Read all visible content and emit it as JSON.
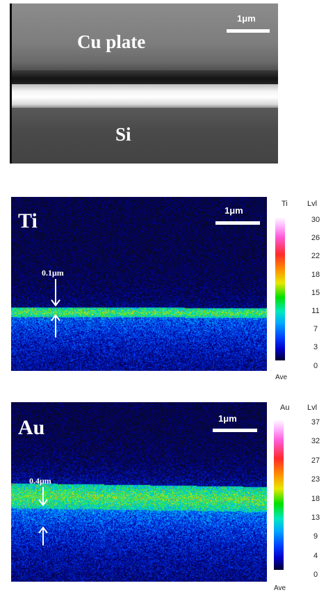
{
  "sem": {
    "top_label": "Cu plate",
    "bottom_label": "Si",
    "scale_label": "1μm"
  },
  "ti_map": {
    "element": "Ti",
    "scale_label": "1μm",
    "thickness_label": "0.1μm",
    "colorbar": {
      "title": "Ti",
      "level_title": "Lvl",
      "levels": [
        "30",
        "26",
        "22",
        "18",
        "15",
        "11",
        "7",
        "3",
        "0"
      ],
      "footer": "Ave"
    }
  },
  "au_map": {
    "element": "Au",
    "scale_label": "1μm",
    "thickness_label": "0.4μm",
    "colorbar": {
      "title": "Au",
      "level_title": "Lvl",
      "levels": [
        "37",
        "32",
        "27",
        "23",
        "18",
        "13",
        "9",
        "4",
        "0"
      ],
      "footer": "Ave"
    }
  },
  "colors": {
    "map_background": "#0a0a2e",
    "ti_band": "#22d060",
    "au_band": "#38e040"
  }
}
